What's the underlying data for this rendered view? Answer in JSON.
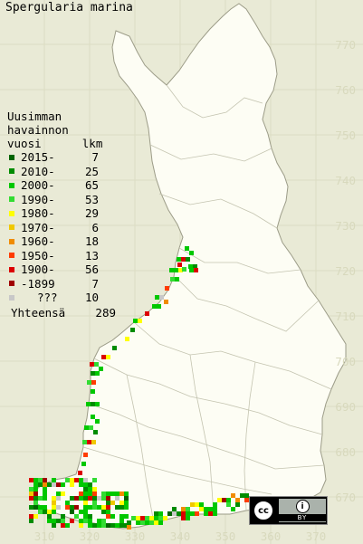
{
  "title": "Spergularia marina",
  "legend": {
    "header": [
      "Uusimman",
      "havainnon",
      "vuosi      lkm"
    ],
    "rows": [
      {
        "label": "2015-",
        "count": "7",
        "color": "#006400"
      },
      {
        "label": "2010-",
        "count": "25",
        "color": "#008c00"
      },
      {
        "label": "2000-",
        "count": "65",
        "color": "#00c800"
      },
      {
        "label": "1990-",
        "count": "53",
        "color": "#32dc32"
      },
      {
        "label": "1980-",
        "count": "29",
        "color": "#ffff00"
      },
      {
        "label": "1970-",
        "count": "6",
        "color": "#f0c800"
      },
      {
        "label": "1960-",
        "count": "18",
        "color": "#f08c00"
      },
      {
        "label": "1950-",
        "count": "13",
        "color": "#ff3c00"
      },
      {
        "label": "1900-",
        "count": "56",
        "color": "#dc0000"
      },
      {
        "label": "-1899",
        "count": "7",
        "color": "#a00000"
      },
      {
        "label": "???",
        "count": "10",
        "color": "#c8c8c8"
      }
    ],
    "total_label": "Yhteensä",
    "total_count": "289"
  },
  "y_axis": [
    "770",
    "760",
    "750",
    "740",
    "730",
    "720",
    "710",
    "700",
    "690",
    "680",
    "670"
  ],
  "x_axis": [
    "310",
    "320",
    "330",
    "340",
    "350",
    "360",
    "370"
  ],
  "license": {
    "cc": "cc",
    "by_icon": "person-icon",
    "by_text": "BY"
  },
  "colors": {
    "background": "#e9ead6",
    "land": "#fdfdf2",
    "outline": "#a0a08c",
    "grid": "#c8c9ad"
  }
}
